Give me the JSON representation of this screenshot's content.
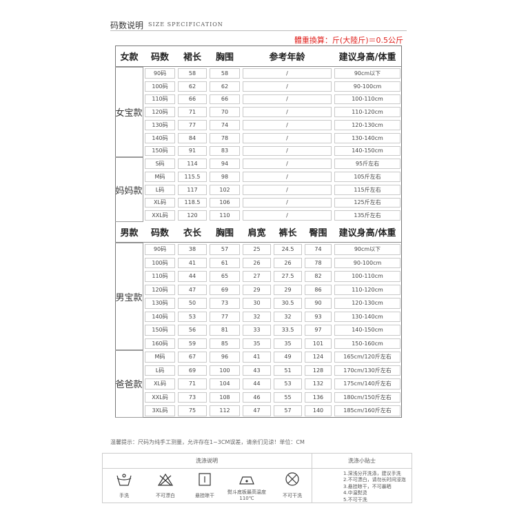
{
  "header": {
    "title": "码数说明",
    "subtitle": "SIZE SPECIFICATION",
    "note": "體重換算：斤(大陸斤)＝0.5公斤"
  },
  "women": {
    "header": [
      "女款",
      "码数",
      "裙长",
      "胸围",
      "参考年龄",
      "建议身高/体重"
    ],
    "groups": [
      {
        "name": "女宝款",
        "rows": [
          [
            "90码",
            58,
            58,
            "/",
            "90cm以下"
          ],
          [
            "100码",
            62,
            62,
            "/",
            "90-100cm"
          ],
          [
            "110码",
            66,
            66,
            "/",
            "100-110cm"
          ],
          [
            "120码",
            71,
            70,
            "/",
            "110-120cm"
          ],
          [
            "130码",
            77,
            74,
            "/",
            "120-130cm"
          ],
          [
            "140码",
            84,
            78,
            "/",
            "130-140cm"
          ],
          [
            "150码",
            91,
            83,
            "/",
            "140-150cm"
          ]
        ]
      },
      {
        "name": "妈妈款",
        "rows": [
          [
            "S码",
            114,
            94,
            "/",
            "95斤左右"
          ],
          [
            "M码",
            115.5,
            98,
            "/",
            "105斤左右"
          ],
          [
            "L码",
            117,
            102,
            "/",
            "115斤左右"
          ],
          [
            "XL码",
            118.5,
            106,
            "/",
            "125斤左右"
          ],
          [
            "XXL码",
            120,
            110,
            "/",
            "135斤左右"
          ]
        ]
      }
    ]
  },
  "men": {
    "header": [
      "男款",
      "码数",
      "衣长",
      "胸围",
      "肩宽",
      "裤长",
      "臀围",
      "建议身高/体重"
    ],
    "groups": [
      {
        "name": "男宝款",
        "rows": [
          [
            "90码",
            38,
            57,
            25,
            24.5,
            74,
            "90cm以下"
          ],
          [
            "100码",
            41,
            61,
            26,
            26,
            78,
            "90-100cm"
          ],
          [
            "110码",
            44,
            65,
            27,
            27.5,
            82,
            "100-110cm"
          ],
          [
            "120码",
            47,
            69,
            29,
            29,
            86,
            "110-120cm"
          ],
          [
            "130码",
            50,
            73,
            30,
            30.5,
            90,
            "120-130cm"
          ],
          [
            "140码",
            53,
            77,
            32,
            32,
            93,
            "130-140cm"
          ],
          [
            "150码",
            56,
            81,
            33,
            33.5,
            97,
            "140-150cm"
          ],
          [
            "160码",
            59,
            85,
            35,
            35,
            101,
            "150-160cm"
          ]
        ]
      },
      {
        "name": "爸爸款",
        "rows": [
          [
            "M码",
            67,
            96,
            41,
            49,
            124,
            "165cm/120斤左右"
          ],
          [
            "L码",
            69,
            100,
            43,
            51,
            128,
            "170cm/130斤左右"
          ],
          [
            "XL码",
            71,
            104,
            44,
            53,
            132,
            "175cm/140斤左右"
          ],
          [
            "XXL码",
            73,
            108,
            46,
            55,
            136,
            "180cm/150斤左右"
          ],
          [
            "3XL码",
            75,
            112,
            47,
            57,
            140,
            "185cm/160斤左右"
          ]
        ]
      }
    ]
  },
  "care": {
    "notice": "温馨提示：尺码为纯手工测量，允许存在1~3CM误差，请亲们见谅！单位：CM",
    "headers": [
      "洗涤说明",
      "洗涤小贴士"
    ],
    "icons": [
      "手洗",
      "不可漂白",
      "悬挂晾干",
      "熨斗底板最高温度110℃",
      "不可干洗"
    ],
    "tips": [
      "1.深浅分开洗涤，建议手洗",
      "2.不可漂白，请勿长时间浸泡",
      "3.悬挂晾干，不可暴晒",
      "4.中温熨烫",
      "5.不可干洗"
    ]
  }
}
